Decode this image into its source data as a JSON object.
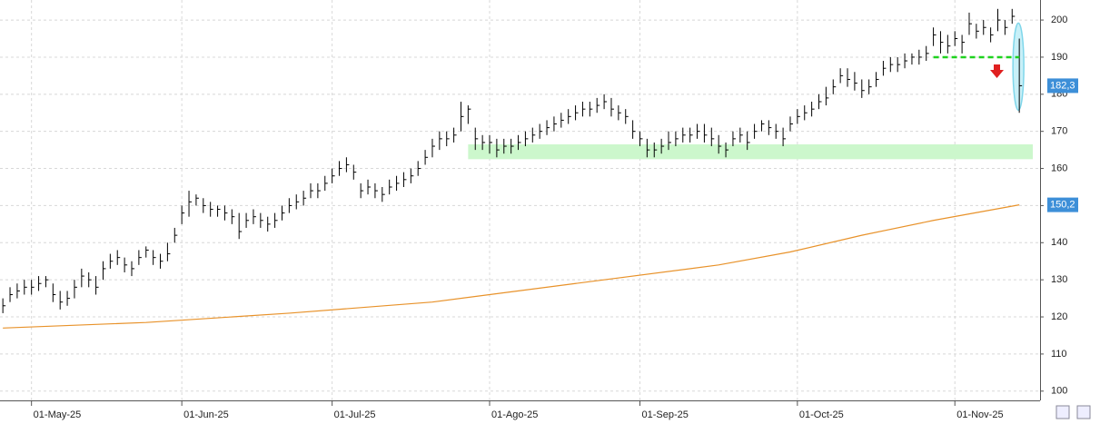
{
  "chart_data": {
    "type": "ohlc",
    "color": "#000000",
    "high": [
      125,
      128,
      129,
      130,
      130,
      131,
      131,
      129,
      127,
      127,
      130,
      133,
      132,
      131,
      135,
      137,
      138,
      136,
      135,
      138,
      139,
      138,
      137,
      140,
      144,
      150,
      154,
      153,
      152,
      151,
      150,
      150,
      149,
      148,
      148,
      149,
      148,
      147,
      148,
      150,
      152,
      153,
      154,
      156,
      156,
      158,
      160,
      162,
      163,
      161,
      156,
      157,
      156,
      155,
      157,
      158,
      159,
      160,
      162,
      165,
      168,
      170,
      170,
      171,
      178,
      177,
      171,
      169,
      169,
      168,
      168,
      168,
      169,
      170,
      171,
      172,
      173,
      174,
      175,
      176,
      177,
      178,
      178,
      179,
      180,
      179,
      177,
      176,
      173,
      170,
      168,
      167,
      168,
      170,
      170,
      171,
      171,
      172,
      172,
      171,
      169,
      167,
      170,
      171,
      170,
      172,
      173,
      173,
      172,
      171,
      174,
      176,
      177,
      178,
      180,
      182,
      184,
      187,
      187,
      186,
      184,
      184,
      186,
      189,
      190,
      190,
      191,
      191,
      192,
      193,
      198,
      197,
      196,
      197,
      196,
      202,
      199,
      200,
      198,
      203,
      200,
      203,
      195
    ],
    "low": [
      121,
      124,
      125,
      126,
      126,
      127,
      128,
      124,
      122,
      123,
      125,
      128,
      128,
      126,
      130,
      133,
      134,
      132,
      131,
      134,
      136,
      134,
      133,
      135,
      140,
      145,
      147,
      150,
      148,
      147,
      147,
      146,
      145,
      141,
      144,
      145,
      144,
      143,
      144,
      146,
      148,
      149,
      150,
      152,
      152,
      154,
      156,
      158,
      159,
      157,
      152,
      153,
      152,
      151,
      153,
      154,
      155,
      156,
      158,
      161,
      163,
      165,
      166,
      167,
      170,
      172,
      165,
      165,
      164,
      163,
      164,
      164,
      165,
      166,
      167,
      168,
      169,
      170,
      171,
      172,
      173,
      174,
      174,
      175,
      176,
      174,
      173,
      172,
      168,
      166,
      163,
      163,
      164,
      165,
      166,
      167,
      167,
      168,
      167,
      166,
      164,
      163,
      166,
      167,
      165,
      168,
      170,
      169,
      168,
      166,
      170,
      172,
      173,
      174,
      176,
      177,
      180,
      183,
      182,
      181,
      179,
      180,
      182,
      185,
      186,
      186,
      187,
      188,
      188,
      189,
      193,
      191,
      191,
      193,
      191,
      196,
      195,
      196,
      194,
      197,
      196,
      199,
      175
    ],
    "close": [
      123,
      126,
      127,
      128,
      128,
      129,
      130,
      126,
      124,
      125,
      128,
      131,
      130,
      128,
      133,
      135,
      136,
      134,
      133,
      136,
      138,
      136,
      135,
      137,
      142,
      148,
      151,
      152,
      150,
      149,
      149,
      148,
      147,
      143,
      146,
      147,
      146,
      145,
      146,
      148,
      150,
      151,
      152,
      154,
      154,
      156,
      158,
      160,
      161,
      159,
      154,
      155,
      154,
      153,
      155,
      156,
      157,
      158,
      160,
      163,
      166,
      168,
      168,
      169,
      174,
      176,
      168,
      167,
      167,
      165,
      166,
      166,
      167,
      168,
      169,
      170,
      171,
      172,
      173,
      174,
      175,
      176,
      176,
      177,
      178,
      176,
      175,
      174,
      170,
      168,
      165,
      165,
      166,
      167,
      168,
      169,
      169,
      170,
      169,
      168,
      166,
      165,
      168,
      169,
      167,
      170,
      172,
      171,
      170,
      168,
      172,
      174,
      175,
      176,
      178,
      179,
      182,
      185,
      184,
      183,
      181,
      182,
      184,
      187,
      188,
      188,
      189,
      190,
      190,
      191,
      196,
      194,
      193,
      195,
      194,
      199,
      197,
      198,
      196,
      200,
      198,
      201,
      182.3
    ],
    "last_price": {
      "value": 182.3,
      "label": "182,3"
    },
    "ma": {
      "color": "#e8922a",
      "x": [
        0,
        20,
        40,
        60,
        80,
        100,
        110,
        120,
        130,
        142
      ],
      "values": [
        117,
        118.5,
        121,
        124,
        129,
        134,
        137.5,
        142,
        146,
        150.2
      ],
      "last_label": {
        "value": 150.2,
        "label": "150,2"
      }
    },
    "support_zone": {
      "x": [
        65,
        144
      ],
      "values": [
        162.5,
        166.5
      ],
      "color": "#ccf7cc"
    },
    "resistance": {
      "x": [
        130,
        142
      ],
      "value": 190,
      "color": "#1ed21e"
    },
    "xlim": [
      -0.4,
      144.9
    ],
    "xticks": [
      {
        "value": 4,
        "label": "01-May-25"
      },
      {
        "value": 25,
        "label": "01-Jun-25"
      },
      {
        "value": 46,
        "label": "01-Jul-25"
      },
      {
        "value": 68,
        "label": "01-Ago-25"
      },
      {
        "value": 89,
        "label": "01-Sep-25"
      },
      {
        "value": 111,
        "label": "01-Oct-25"
      },
      {
        "value": 133,
        "label": "01-Nov-25"
      }
    ],
    "ylim": [
      97.5,
      205.4
    ],
    "yticks": [
      100,
      110,
      120,
      130,
      140,
      150,
      160,
      170,
      180,
      190,
      200
    ],
    "grid": true
  }
}
